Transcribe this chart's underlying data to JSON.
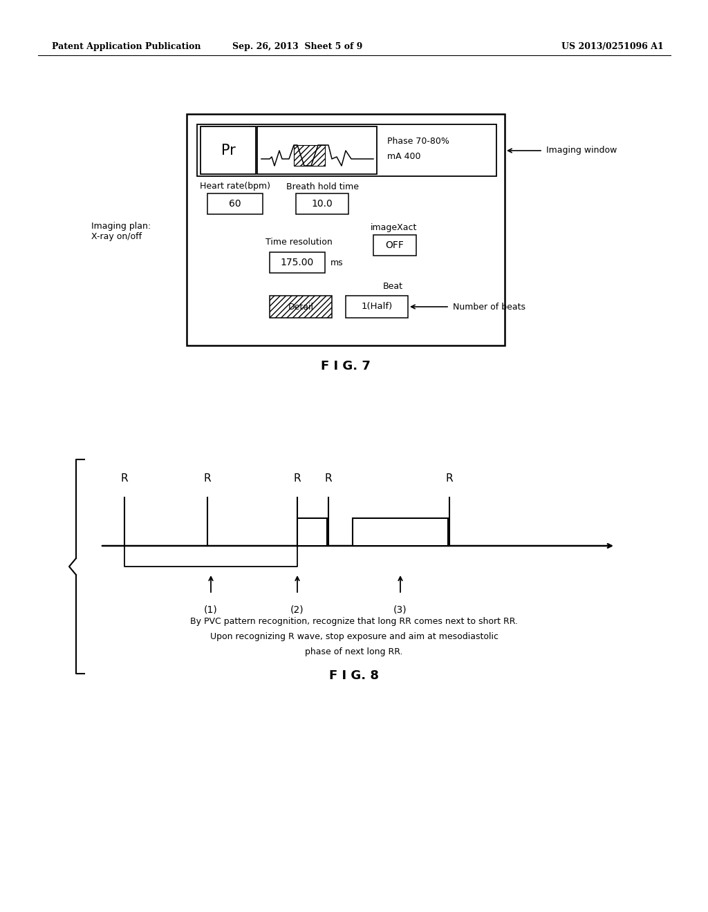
{
  "bg_color": "#ffffff",
  "header_left": "Patent Application Publication",
  "header_center": "Sep. 26, 2013  Sheet 5 of 9",
  "header_right": "US 2013/0251096 A1",
  "fig7_label": "F I G. 7",
  "fig8_label": "F I G. 8",
  "fig7": {
    "pr_label": "Pr",
    "phase_line1": "Phase 70-80%",
    "phase_line2": "mA 400",
    "imaging_window_label": "Imaging window",
    "imaging_plan_label": "Imaging plan:\nX-ray on/off",
    "heart_rate_label": "Heart rate(bpm)",
    "heart_rate_value": "60",
    "breath_hold_label": "Breath hold time",
    "breath_hold_value": "10.0",
    "imageXact_label": "imageXact",
    "imageXact_value": "OFF",
    "time_res_label": "Time resolution",
    "time_res_value": "175.00",
    "time_res_unit": "ms",
    "beat_label": "Beat",
    "beat_value": "1(Half)",
    "detail_label": "Detail",
    "num_beats_label": "Number of beats"
  },
  "fig8": {
    "description_line1": "By PVC pattern recognition, recognize that long RR comes next to short RR.",
    "description_line2": "Upon recognizing R wave, stop exposure and aim at mesodiastolic",
    "description_line3": "phase of next long RR."
  }
}
